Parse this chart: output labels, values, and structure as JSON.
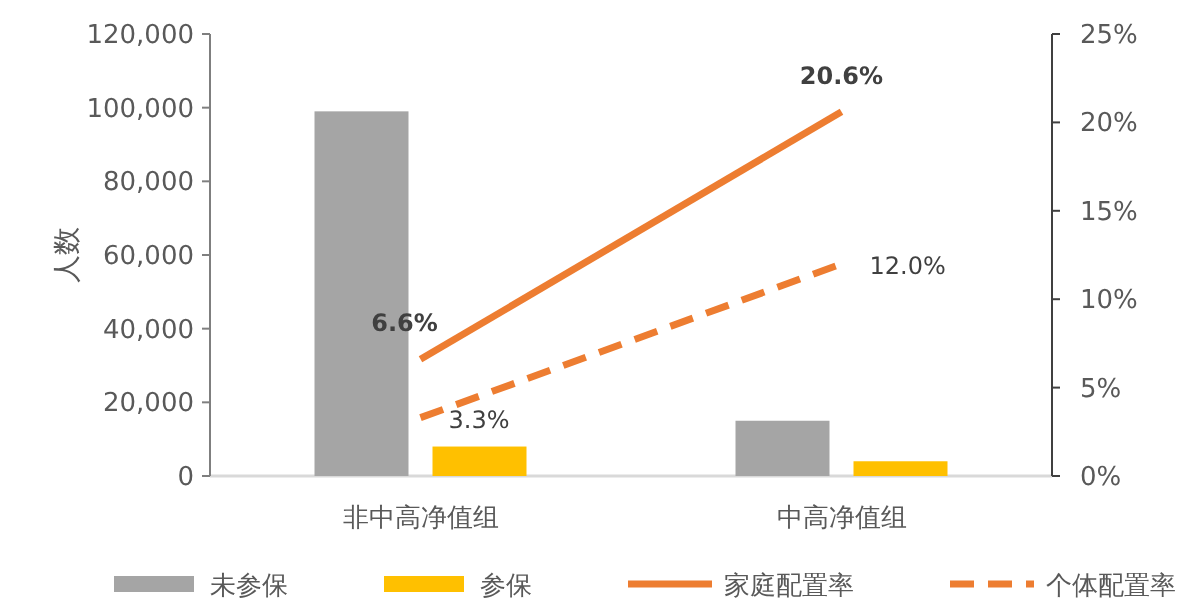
{
  "chart_data": {
    "type": "bar",
    "categories": [
      "非中高净值组",
      "中高净值组"
    ],
    "ylabel": "人数",
    "ylim": [
      0,
      120000
    ],
    "yticks": [
      {
        "value": 0,
        "label": "0"
      },
      {
        "value": 20000,
        "label": "20,000"
      },
      {
        "value": 40000,
        "label": "40,000"
      },
      {
        "value": 60000,
        "label": "60,000"
      },
      {
        "value": 80000,
        "label": "80,000"
      },
      {
        "value": 100000,
        "label": "100,000"
      },
      {
        "value": 120000,
        "label": "120,000"
      }
    ],
    "y2lim": [
      0,
      25
    ],
    "y2ticks": [
      {
        "value": 0,
        "label": "0%"
      },
      {
        "value": 5,
        "label": "5%"
      },
      {
        "value": 10,
        "label": "10%"
      },
      {
        "value": 15,
        "label": "15%"
      },
      {
        "value": 20,
        "label": "20%"
      },
      {
        "value": 25,
        "label": "25%"
      }
    ],
    "legend": "bottom",
    "grid": false,
    "series": [
      {
        "name": "未参保",
        "color": "#a5a5a5",
        "values": [
          99000,
          15000
        ]
      },
      {
        "name": "参保",
        "color": "#ffc000",
        "values": [
          8000,
          4000
        ]
      },
      {
        "name": "家庭配置率",
        "type": "line",
        "axis": "y2",
        "color": "#ed7d31",
        "values": [
          6.6,
          20.6
        ],
        "value_labels": [
          "6.6%",
          "20.6%"
        ],
        "line_style": "solid"
      },
      {
        "name": "个体配置率",
        "type": "line",
        "axis": "y2",
        "color": "#ed7d31",
        "values": [
          3.3,
          12.0
        ],
        "value_labels": [
          "3.3%",
          "12.0%"
        ],
        "line_style": "dashed"
      }
    ]
  }
}
